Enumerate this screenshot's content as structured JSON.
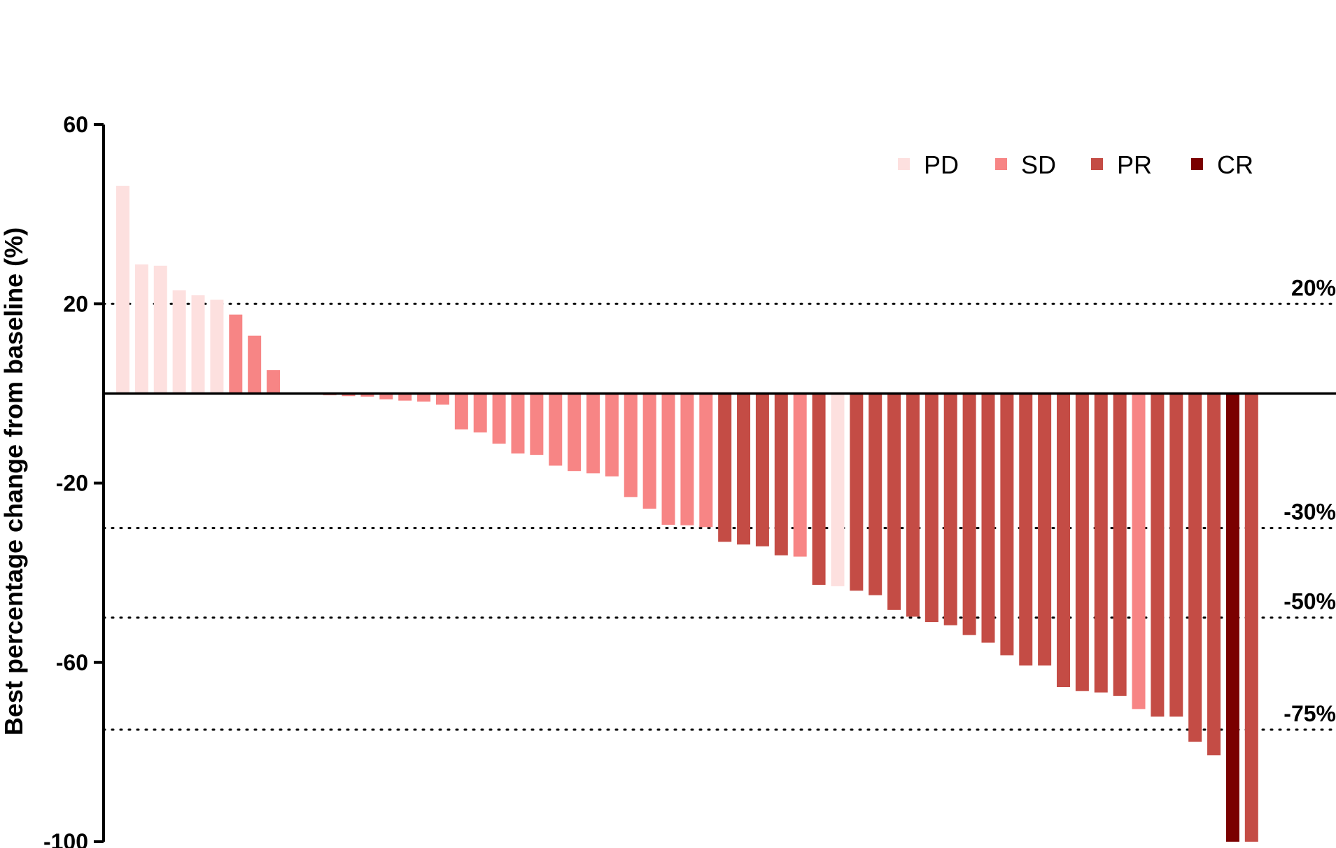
{
  "chart_data": {
    "type": "bar",
    "title": "",
    "xlabel": "",
    "ylabel": "Best percentage change from baseline (%)",
    "ylim": [
      -100,
      60
    ],
    "yticks": [
      60,
      20,
      -20,
      -60,
      -100
    ],
    "ytick_labels": [
      "60",
      "20",
      "-20",
      "-60",
      "-100"
    ],
    "legend": [
      {
        "key": "PD",
        "label": "PD",
        "color": "#fde0df"
      },
      {
        "key": "SD",
        "label": "SD",
        "color": "#f78585"
      },
      {
        "key": "PR",
        "label": "PR",
        "color": "#c44c45"
      },
      {
        "key": "CR",
        "label": "CR",
        "color": "#7a0000"
      }
    ],
    "reference_lines": [
      {
        "value": 20,
        "label": "20%"
      },
      {
        "value": -30,
        "label": "-30%"
      },
      {
        "value": -50,
        "label": "-50%"
      },
      {
        "value": -75,
        "label": "-75%"
      }
    ],
    "values": [
      46.3,
      28.8,
      28.5,
      23.0,
      21.9,
      20.9,
      17.6,
      12.9,
      5.2,
      0.0,
      -0.2,
      -0.4,
      -0.6,
      -0.7,
      -1.3,
      -1.6,
      -1.8,
      -2.5,
      -8.0,
      -8.7,
      -11.2,
      -13.4,
      -13.7,
      -16.1,
      -17.3,
      -17.8,
      -18.5,
      -23.1,
      -25.7,
      -29.3,
      -29.4,
      -29.8,
      -33.1,
      -33.7,
      -34.1,
      -36.1,
      -36.4,
      -42.7,
      -43.0,
      -44.0,
      -45.0,
      -48.3,
      -49.8,
      -51.0,
      -51.7,
      -53.9,
      -55.6,
      -58.4,
      -60.7,
      -60.7,
      -65.5,
      -66.4,
      -66.7,
      -67.5,
      -70.4,
      -72.1,
      -72.1,
      -77.7,
      -80.7,
      -100.0,
      -100.0
    ],
    "response": [
      "PD",
      "PD",
      "PD",
      "PD",
      "PD",
      "PD",
      "SD",
      "SD",
      "SD",
      "SD",
      "SD",
      "SD",
      "SD",
      "SD",
      "SD",
      "SD",
      "SD",
      "SD",
      "SD",
      "SD",
      "SD",
      "SD",
      "SD",
      "SD",
      "SD",
      "SD",
      "SD",
      "SD",
      "SD",
      "SD",
      "SD",
      "SD",
      "PR",
      "PR",
      "PR",
      "PR",
      "SD",
      "PR",
      "PD",
      "PR",
      "PR",
      "PR",
      "PR",
      "PR",
      "PR",
      "PR",
      "PR",
      "PR",
      "PR",
      "PR",
      "PR",
      "PR",
      "PR",
      "PR",
      "SD",
      "PR",
      "PR",
      "PR",
      "PR",
      "CR",
      "PR"
    ]
  }
}
